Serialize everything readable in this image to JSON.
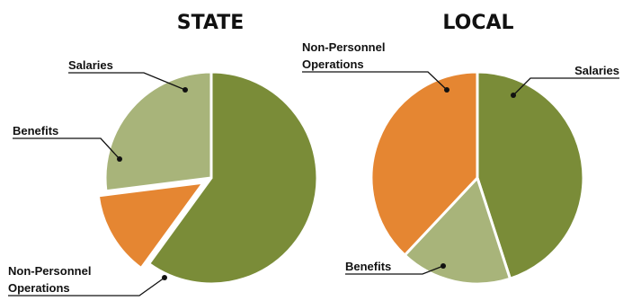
{
  "colors": {
    "salaries": "#7a8c38",
    "benefits": "#a8b47a",
    "non_personnel": "#e58632"
  },
  "chart_data": [
    {
      "type": "pie",
      "title": "STATE",
      "slices": [
        {
          "label": "Salaries",
          "value": 60,
          "color": "#7a8c38"
        },
        {
          "label": "Non-Personnel Operations",
          "value": 13,
          "color": "#e58632",
          "exploded": true
        },
        {
          "label": "Benefits",
          "value": 27,
          "color": "#a8b47a"
        }
      ]
    },
    {
      "type": "pie",
      "title": "LOCAL",
      "slices": [
        {
          "label": "Salaries",
          "value": 45,
          "color": "#7a8c38"
        },
        {
          "label": "Benefits",
          "value": 17,
          "color": "#a8b47a"
        },
        {
          "label": "Non-Personnel Operations",
          "value": 38,
          "color": "#e58632"
        }
      ]
    }
  ],
  "labels": {
    "state": {
      "salaries": "Salaries",
      "benefits": "Benefits",
      "nonpersonnel_line1": "Non-Personnel",
      "nonpersonnel_line2": "Operations"
    },
    "local": {
      "salaries": "Salaries",
      "benefits": "Benefits",
      "nonpersonnel_line1": "Non-Personnel",
      "nonpersonnel_line2": "Operations"
    }
  }
}
